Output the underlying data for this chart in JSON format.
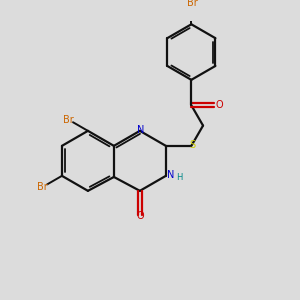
{
  "bg_color": "#dcdcdc",
  "bond_color": "#111111",
  "br_color": "#cc6600",
  "n_color": "#0000cc",
  "o_color": "#cc0000",
  "s_color": "#cccc00",
  "h_color": "#008888",
  "figsize": [
    3.0,
    3.0
  ],
  "dpi": 100,
  "xlim": [
    0,
    10
  ],
  "ylim": [
    0,
    10
  ]
}
